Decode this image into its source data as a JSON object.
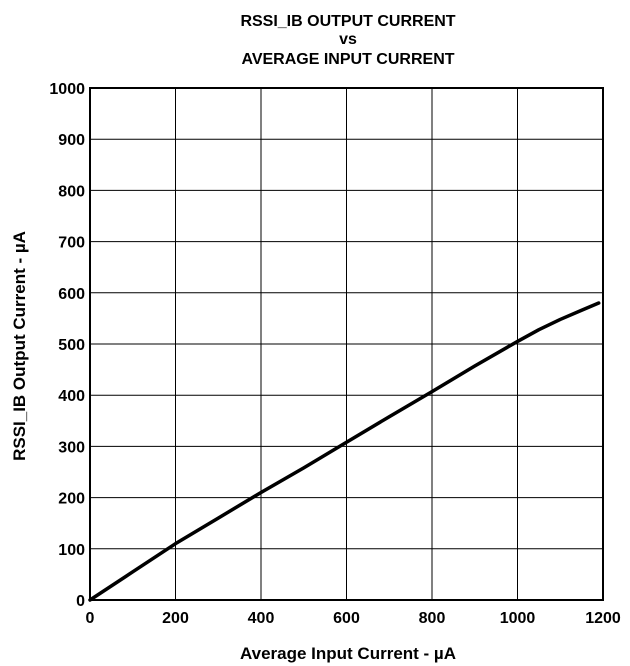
{
  "chart_data": {
    "type": "line",
    "title_lines": [
      "RSSI_IB OUTPUT CURRENT",
      "vs",
      "AVERAGE INPUT CURRENT"
    ],
    "xlabel": "Average Input Current - µA",
    "ylabel": "RSSI_IB Output Current - µA",
    "xlim": [
      0,
      1200
    ],
    "ylim": [
      0,
      1000
    ],
    "xticks": [
      "0",
      "200",
      "400",
      "600",
      "800",
      "1000",
      "1200"
    ],
    "yticks": [
      "0",
      "100",
      "200",
      "300",
      "400",
      "500",
      "600",
      "700",
      "800",
      "900",
      "1000"
    ],
    "grid": true,
    "series": [
      {
        "x": [
          0,
          100,
          200,
          300,
          400,
          500,
          600,
          700,
          800,
          900,
          1000,
          1050,
          1100,
          1150,
          1190
        ],
        "y": [
          0,
          55,
          110,
          160,
          210,
          258,
          308,
          358,
          407,
          457,
          505,
          528,
          548,
          566,
          580
        ]
      }
    ]
  },
  "colors": {
    "line": "#000000",
    "grid": "#000000",
    "background": "#ffffff"
  }
}
